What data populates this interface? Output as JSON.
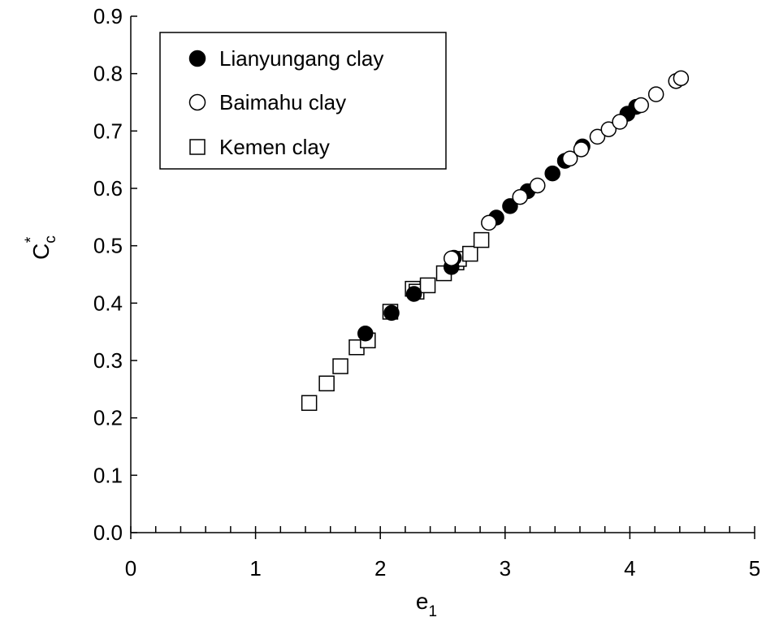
{
  "chart_data": {
    "type": "scatter",
    "title": "",
    "xlabel": {
      "main": "e",
      "sub": "1"
    },
    "ylabel": {
      "main": "C",
      "sub": "c",
      "sup": "*"
    },
    "xlim": [
      0,
      5
    ],
    "ylim": [
      0.0,
      0.9
    ],
    "x_ticks": [
      "0",
      "1",
      "2",
      "3",
      "4",
      "5"
    ],
    "x_tick_values": [
      0,
      1,
      2,
      3,
      4,
      5
    ],
    "y_ticks": [
      "0.0",
      "0.1",
      "0.2",
      "0.3",
      "0.4",
      "0.5",
      "0.6",
      "0.7",
      "0.8",
      "0.9"
    ],
    "y_tick_values": [
      0.0,
      0.1,
      0.2,
      0.3,
      0.4,
      0.5,
      0.6,
      0.7,
      0.8,
      0.9
    ],
    "x_minor_step": 0.2,
    "grid": false,
    "legend_position": "top-left",
    "series": [
      {
        "name": "Lianyungang clay",
        "marker": "filled-circle",
        "color": "#000000",
        "points": [
          [
            1.88,
            0.347
          ],
          [
            2.09,
            0.383
          ],
          [
            2.27,
            0.416
          ],
          [
            2.57,
            0.463
          ],
          [
            2.59,
            0.479
          ],
          [
            2.93,
            0.549
          ],
          [
            3.04,
            0.569
          ],
          [
            3.18,
            0.595
          ],
          [
            3.38,
            0.626
          ],
          [
            3.48,
            0.648
          ],
          [
            3.62,
            0.673
          ],
          [
            3.98,
            0.73
          ],
          [
            4.05,
            0.742
          ]
        ]
      },
      {
        "name": "Baimahu clay",
        "marker": "open-circle",
        "color": "#000000",
        "points": [
          [
            2.57,
            0.478
          ],
          [
            2.87,
            0.54
          ],
          [
            3.12,
            0.585
          ],
          [
            3.26,
            0.605
          ],
          [
            3.52,
            0.652
          ],
          [
            3.61,
            0.668
          ],
          [
            3.74,
            0.69
          ],
          [
            3.83,
            0.703
          ],
          [
            3.92,
            0.716
          ],
          [
            4.09,
            0.745
          ],
          [
            4.21,
            0.764
          ],
          [
            4.37,
            0.787
          ],
          [
            4.41,
            0.792
          ]
        ]
      },
      {
        "name": "Kemen clay",
        "marker": "open-square",
        "color": "#000000",
        "points": [
          [
            1.43,
            0.226
          ],
          [
            1.57,
            0.26
          ],
          [
            1.68,
            0.29
          ],
          [
            1.81,
            0.323
          ],
          [
            1.9,
            0.335
          ],
          [
            2.08,
            0.385
          ],
          [
            2.26,
            0.425
          ],
          [
            2.29,
            0.42
          ],
          [
            2.38,
            0.431
          ],
          [
            2.51,
            0.452
          ],
          [
            2.61,
            0.471
          ],
          [
            2.63,
            0.477
          ],
          [
            2.72,
            0.486
          ],
          [
            2.81,
            0.51
          ]
        ]
      }
    ]
  }
}
